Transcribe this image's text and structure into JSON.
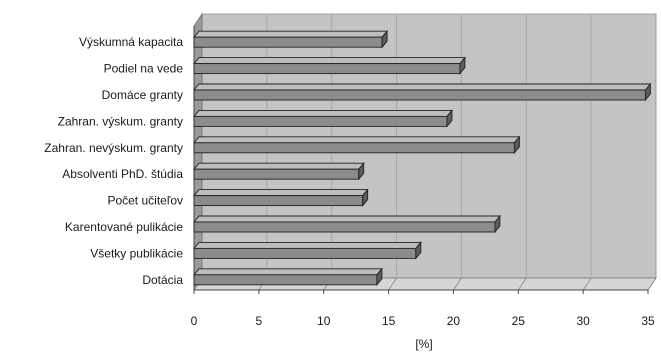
{
  "chart_data": {
    "type": "bar",
    "orientation": "horizontal",
    "style": "3d",
    "categories": [
      "Výskumná kapacita",
      "Podiel na vede",
      "Domáce granty",
      "Zahran. výskum. granty",
      "Zahran. nevýskum. granty",
      "Absolventi PhD. štúdia",
      "Počet učiteľov",
      "Karentované pulikácie",
      "Všetky publikácie",
      "Dotácia"
    ],
    "values": [
      14.5,
      20.5,
      34.8,
      19.5,
      24.7,
      12.7,
      13.0,
      23.2,
      17.1,
      14.1
    ],
    "xlabel": "[%]",
    "ylabel": "",
    "xlim": [
      0,
      35
    ],
    "xticks": [
      "0",
      "5",
      "10",
      "15",
      "20",
      "25",
      "30",
      "35"
    ],
    "grid": true,
    "colors": {
      "plot_background": "#c4c4c4",
      "gridline": "#a7a7a7",
      "bar_front": "#8c8c8c",
      "bar_top": "#bdbdbd",
      "bar_end": "#5c5c5c",
      "wall_side": "#9a9a9a",
      "floor": "#d6d6d6"
    }
  }
}
